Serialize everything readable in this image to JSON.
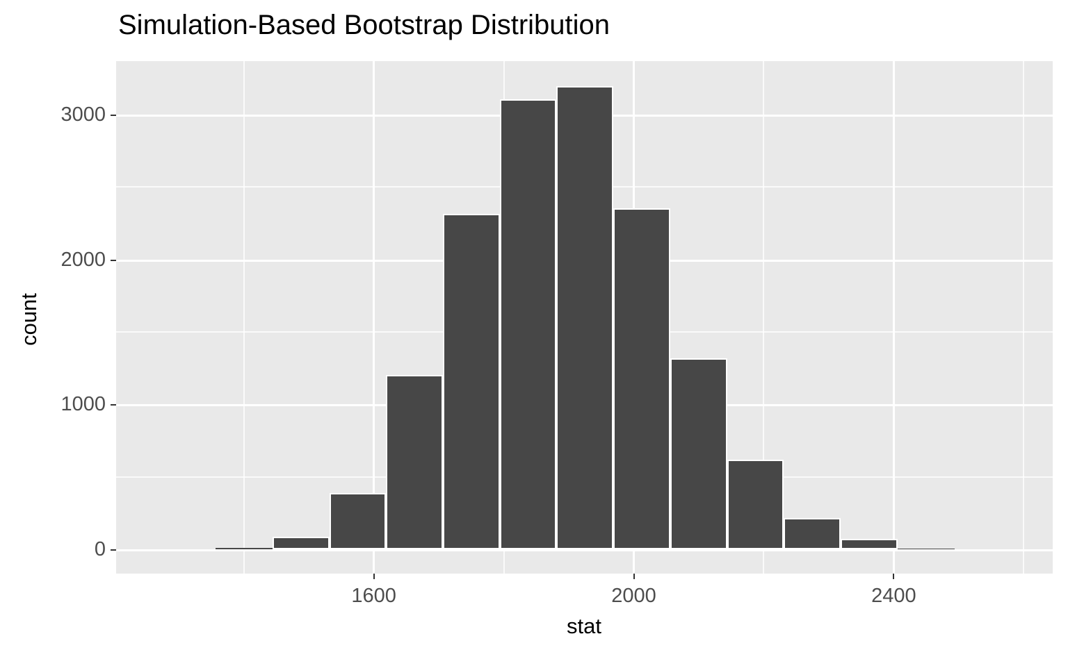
{
  "title": "Simulation-Based Bootstrap Distribution",
  "chart_data": {
    "type": "bar",
    "subtype": "histogram",
    "title": "Simulation-Based Bootstrap Distribution",
    "xlabel": "stat",
    "ylabel": "count",
    "bin_edges": [
      1356,
      1444,
      1532,
      1619,
      1706,
      1794,
      1881,
      1968,
      2056,
      2144,
      2230,
      2318,
      2406,
      2494
    ],
    "counts": [
      8,
      85,
      390,
      1205,
      2315,
      3105,
      3195,
      2355,
      1320,
      620,
      215,
      70,
      5
    ],
    "x_ticks": [
      1600,
      2000,
      2400
    ],
    "x_minor_ticks": [
      1400,
      1800,
      2200,
      2600
    ],
    "y_ticks": [
      0,
      1000,
      2000,
      3000
    ],
    "y_minor_ticks": [
      500,
      1500,
      2500
    ],
    "x_domain": [
      1203.5,
      2644.5
    ],
    "y_domain": [
      0,
      3368
    ],
    "grid": true,
    "legend": false,
    "colors": {
      "figure_bg": "#FFFFFF",
      "panel_bg": "#E9E9E9",
      "bar_fill": "#474747",
      "bar_border": "#FFFFFF",
      "grid_line": "#FFFFFF",
      "tick_label": "#4D4D4D",
      "axis_title": "#000000",
      "tick_mark": "#333333"
    }
  }
}
